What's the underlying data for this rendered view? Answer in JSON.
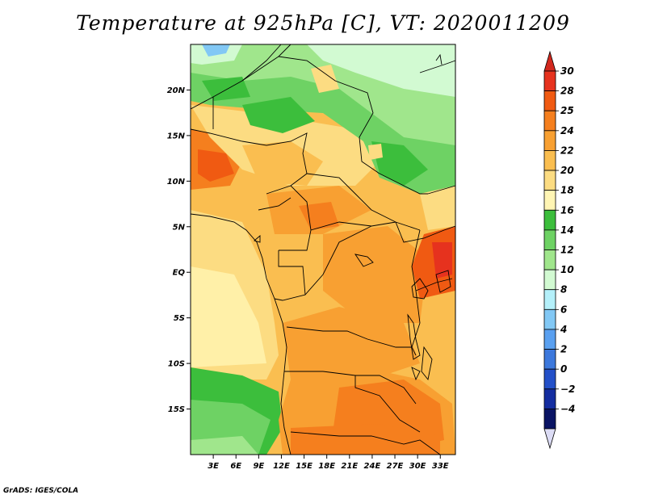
{
  "title": "Temperature at 925hPa [C], VT: 2020011209",
  "credit": "GrADS: IGES/COLA",
  "map": {
    "lon_range": [
      0,
      35
    ],
    "lat_range": [
      -20,
      25
    ],
    "lat_ticks": [
      {
        "lat": 20,
        "label": "20N"
      },
      {
        "lat": 15,
        "label": "15N"
      },
      {
        "lat": 10,
        "label": "10N"
      },
      {
        "lat": 5,
        "label": "5N"
      },
      {
        "lat": 0,
        "label": "EQ"
      },
      {
        "lat": -5,
        "label": "5S"
      },
      {
        "lat": -10,
        "label": "10S"
      },
      {
        "lat": -15,
        "label": "15S"
      }
    ],
    "lon_ticks": [
      {
        "lon": 3,
        "label": "3E"
      },
      {
        "lon": 6,
        "label": "6E"
      },
      {
        "lon": 9,
        "label": "9E"
      },
      {
        "lon": 12,
        "label": "12E"
      },
      {
        "lon": 15,
        "label": "15E"
      },
      {
        "lon": 18,
        "label": "18E"
      },
      {
        "lon": 21,
        "label": "21E"
      },
      {
        "lon": 24,
        "label": "24E"
      },
      {
        "lon": 27,
        "label": "27E"
      },
      {
        "lon": 30,
        "label": "30E"
      },
      {
        "lon": 33,
        "label": "33E"
      }
    ]
  },
  "colorbar": {
    "levels": [
      {
        "label": "30",
        "color": "#e6321e"
      },
      {
        "label": "28",
        "color": "#f05a12"
      },
      {
        "label": "25",
        "color": "#f57f1e"
      },
      {
        "label": "24",
        "color": "#f8a032"
      },
      {
        "label": "22",
        "color": "#fabe50"
      },
      {
        "label": "20",
        "color": "#fcdc82"
      },
      {
        "label": "18",
        "color": "#fff5b4"
      },
      {
        "label": "16",
        "color": "#3cbe3c"
      },
      {
        "label": "14",
        "color": "#6ed264"
      },
      {
        "label": "12",
        "color": "#a0e68c"
      },
      {
        "label": "10",
        "color": "#d2fad2"
      },
      {
        "label": "8",
        "color": "#b4f0fa"
      },
      {
        "label": "6",
        "color": "#82c8f5"
      },
      {
        "label": "4",
        "color": "#5aa0f0"
      },
      {
        "label": "2",
        "color": "#3c78dc"
      },
      {
        "label": "0",
        "color": "#2350c8"
      },
      {
        "label": "−2",
        "color": "#142da0"
      },
      {
        "label": "−4",
        "color": "#0a1464"
      }
    ],
    "top_cap_color": "#d2281e",
    "bottom_cap_color": "#dcdcf5"
  }
}
